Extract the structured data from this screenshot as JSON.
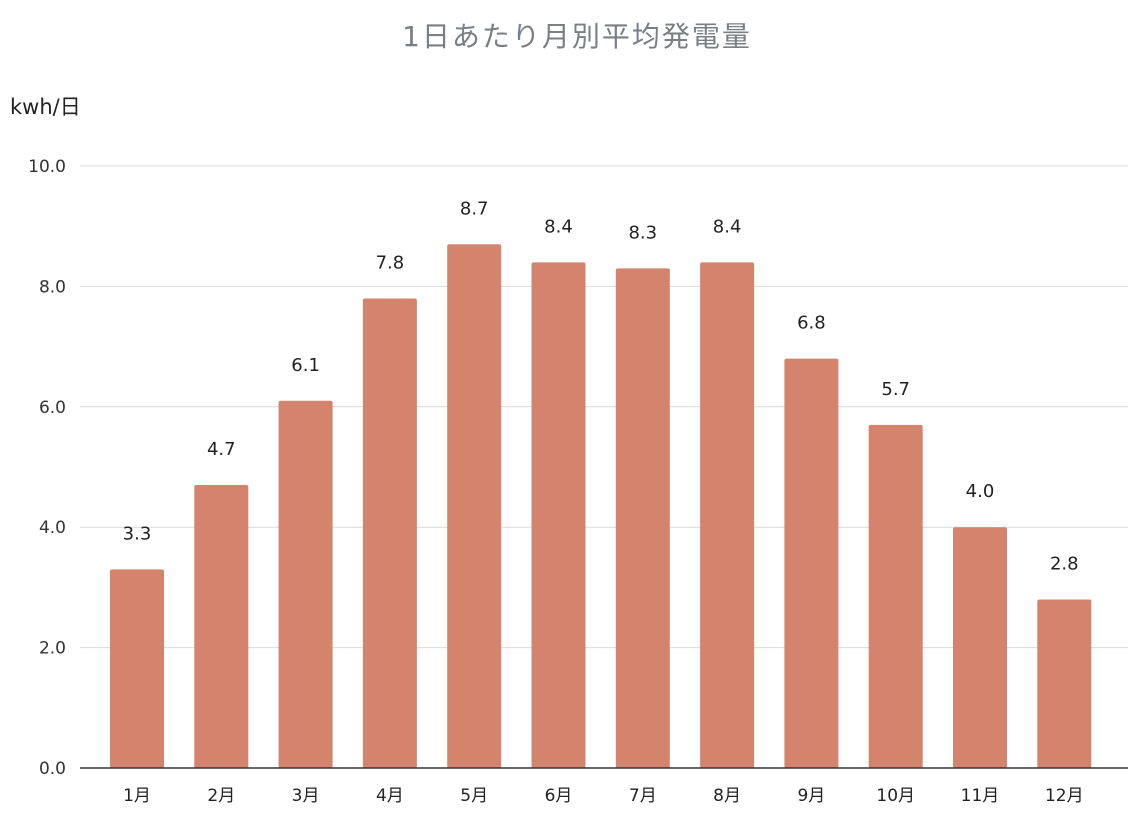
{
  "chart_data": {
    "type": "bar",
    "title": "1日あたり月別平均発電量",
    "ylabel": "kwh/日",
    "xlabel": "",
    "categories": [
      "1月",
      "2月",
      "3月",
      "4月",
      "5月",
      "6月",
      "7月",
      "8月",
      "9月",
      "10月",
      "11月",
      "12月"
    ],
    "values": [
      3.3,
      4.7,
      6.1,
      7.8,
      8.7,
      8.4,
      8.3,
      8.4,
      6.8,
      5.7,
      4.0,
      2.8
    ],
    "data_labels": [
      "3.3",
      "4.7",
      "6.1",
      "7.8",
      "8.7",
      "8.4",
      "8.3",
      "8.4",
      "6.8",
      "5.7",
      "4.0",
      "2.8"
    ],
    "ylim": [
      0,
      10
    ],
    "yticks": [
      "0.0",
      "2.0",
      "4.0",
      "6.0",
      "8.0",
      "10.0"
    ],
    "grid": true,
    "bar_color": "#d4846d",
    "legend": "none"
  }
}
